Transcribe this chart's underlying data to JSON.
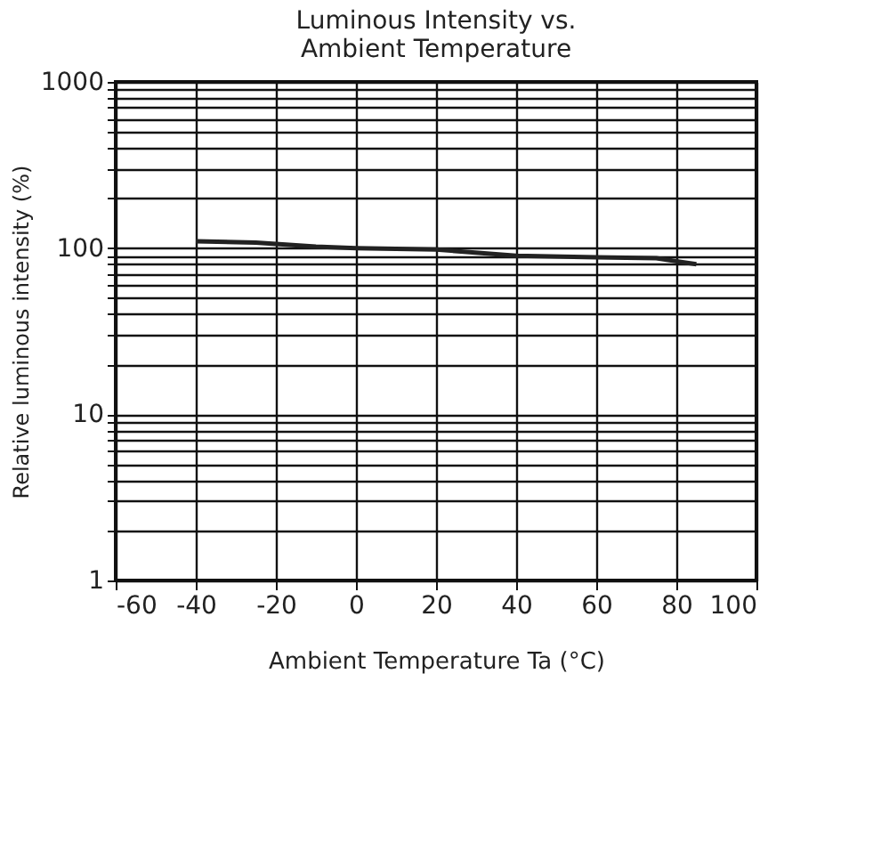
{
  "chart_data": {
    "type": "line",
    "title": [
      "Luminous Intensity vs.",
      "Ambient Temperature"
    ],
    "xlabel": "Ambient Temperature Ta (°C)",
    "ylabel": "Relative luminous intensity  (%)",
    "x": [
      -40,
      -25,
      -10,
      0,
      20,
      40,
      60,
      75,
      85
    ],
    "series": [
      {
        "color": "#222222",
        "values": [
          110,
          108,
          102,
          100,
          98,
          90,
          88,
          87,
          80
        ]
      }
    ],
    "xlim": [
      -60,
      100
    ],
    "xticks": [
      -60,
      -40,
      -20,
      0,
      20,
      40,
      60,
      80,
      100
    ],
    "ylim": [
      1,
      1000
    ],
    "log": true,
    "yticks": [
      1,
      {
        "value": 2,
        "label": null
      },
      {
        "value": 3,
        "label": null
      },
      {
        "value": 4,
        "label": null
      },
      {
        "value": 5,
        "label": null
      },
      {
        "value": 6,
        "label": null
      },
      {
        "value": 7,
        "label": null
      },
      {
        "value": 8,
        "label": null
      },
      {
        "value": 9,
        "label": null
      },
      10,
      {
        "value": 20,
        "label": null
      },
      {
        "value": 30,
        "label": null
      },
      {
        "value": 40,
        "label": null
      },
      {
        "value": 50,
        "label": null
      },
      {
        "value": 60,
        "label": null
      },
      {
        "value": 70,
        "label": null
      },
      {
        "value": 80,
        "label": null
      },
      {
        "value": 90,
        "label": null
      },
      100,
      {
        "value": 200,
        "label": null
      },
      {
        "value": 300,
        "label": null
      },
      {
        "value": 400,
        "label": null
      },
      {
        "value": 500,
        "label": null
      },
      {
        "value": 600,
        "label": null
      },
      {
        "value": 700,
        "label": null
      },
      {
        "value": 800,
        "label": null
      },
      {
        "value": 900,
        "label": null
      },
      1000
    ],
    "grid": true,
    "marker": "none",
    "line_style": "solid"
  }
}
